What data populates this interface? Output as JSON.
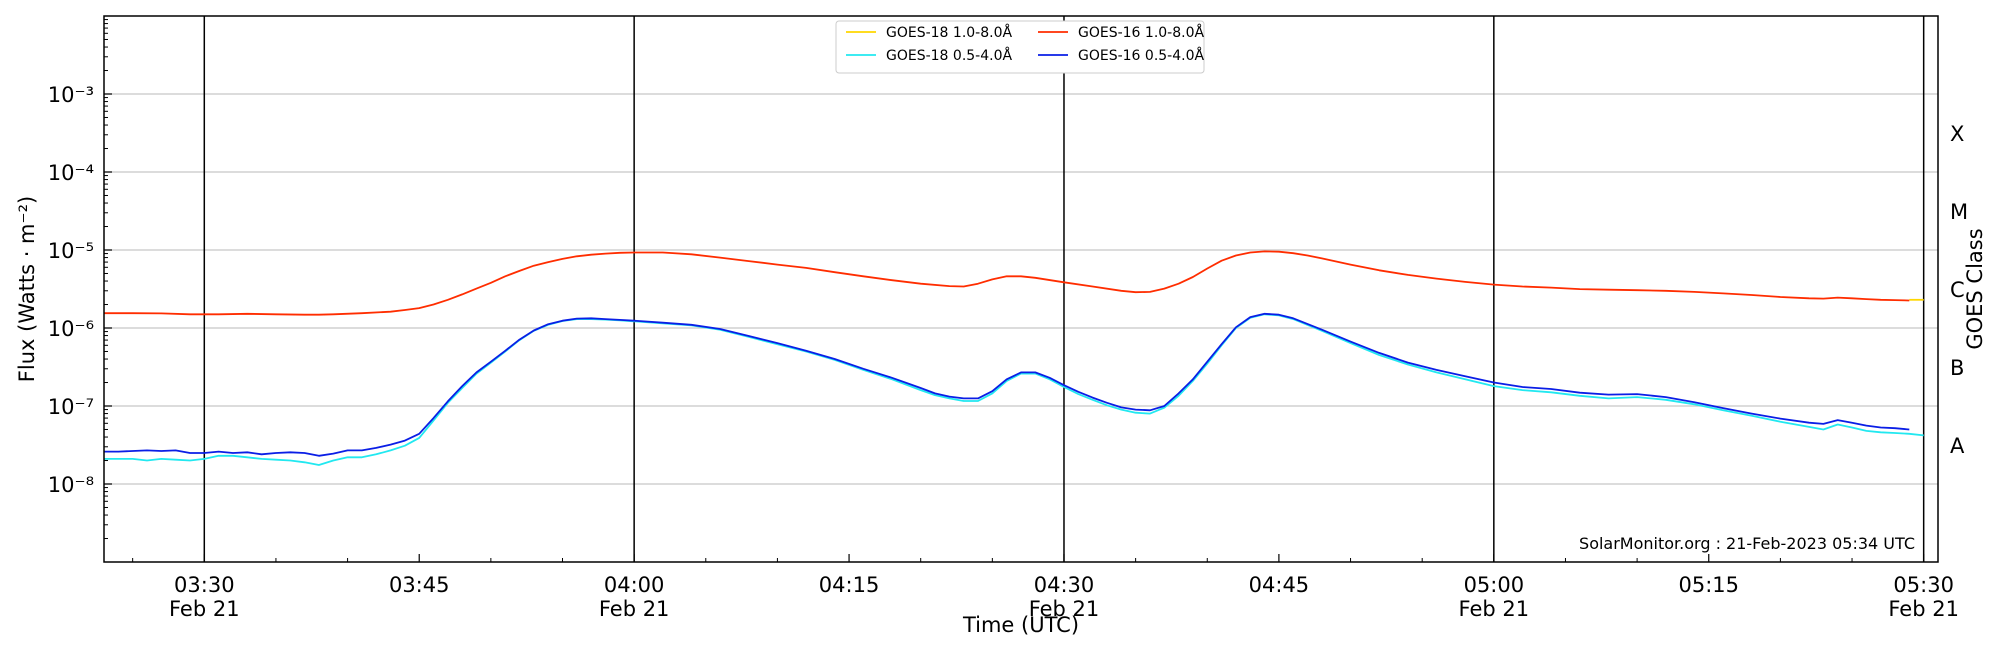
{
  "chart_data": {
    "type": "line",
    "title": "",
    "xlabel": "Time (UTC)",
    "ylabel": "Flux (Watts · m⁻²)",
    "right_label": "GOES Class",
    "y_scale": "log",
    "ylim": [
      1e-09,
      0.01
    ],
    "x_unit": "minutes",
    "xlim": [
      "03:23",
      "05:31"
    ],
    "y_ticks": [
      {
        "value": 1e-08,
        "label": "10⁻⁸"
      },
      {
        "value": 1e-07,
        "label": "10⁻⁷"
      },
      {
        "value": 1e-06,
        "label": "10⁻⁶"
      },
      {
        "value": 1e-05,
        "label": "10⁻⁵"
      },
      {
        "value": 0.0001,
        "label": "10⁻⁴"
      },
      {
        "value": 0.001,
        "label": "10⁻³"
      }
    ],
    "x_ticks": [
      {
        "time": "03:30",
        "label": "03:30",
        "sublabel": "Feb 21",
        "major": true
      },
      {
        "time": "03:45",
        "label": "03:45",
        "sublabel": "",
        "major": false
      },
      {
        "time": "04:00",
        "label": "04:00",
        "sublabel": "Feb 21",
        "major": true
      },
      {
        "time": "04:15",
        "label": "04:15",
        "sublabel": "",
        "major": false
      },
      {
        "time": "04:30",
        "label": "04:30",
        "sublabel": "Feb 21",
        "major": true
      },
      {
        "time": "04:45",
        "label": "04:45",
        "sublabel": "",
        "major": false
      },
      {
        "time": "05:00",
        "label": "05:00",
        "sublabel": "Feb 21",
        "major": true
      },
      {
        "time": "05:15",
        "label": "05:15",
        "sublabel": "",
        "major": false
      },
      {
        "time": "05:30",
        "label": "05:30",
        "sublabel": "Feb 21",
        "major": true
      }
    ],
    "goes_classes": [
      {
        "label": "A",
        "value": 3.16e-08
      },
      {
        "label": "B",
        "value": 3.16e-07
      },
      {
        "label": "C",
        "value": 3.16e-06
      },
      {
        "label": "M",
        "value": 3.16e-05
      },
      {
        "label": "X",
        "value": 0.000316
      }
    ],
    "grid": true,
    "legend_position": "top-center",
    "watermark": "SolarMonitor.org : 21-Feb-2023 05:34 UTC",
    "series": [
      {
        "name": "GOES-18 1.0-8.0Å",
        "color": "#ffd700",
        "x": [
          "05:29",
          "05:30"
        ],
        "y": [
          2.3e-06,
          2.3e-06
        ]
      },
      {
        "name": "GOES-18 0.5-4.0Å",
        "color": "#22e8f0",
        "x": [
          "03:23",
          "03:24",
          "03:25",
          "03:26",
          "03:27",
          "03:28",
          "03:29",
          "03:30",
          "03:31",
          "03:32",
          "03:33",
          "03:34",
          "03:35",
          "03:36",
          "03:37",
          "03:38",
          "03:39",
          "03:40",
          "03:41",
          "03:42",
          "03:43",
          "03:44",
          "03:45",
          "03:46",
          "03:47",
          "03:48",
          "03:49",
          "03:50",
          "03:51",
          "03:52",
          "03:53",
          "03:54",
          "03:55",
          "03:56",
          "03:57",
          "03:58",
          "03:59",
          "04:00",
          "04:02",
          "04:04",
          "04:06",
          "04:08",
          "04:10",
          "04:12",
          "04:14",
          "04:16",
          "04:18",
          "04:20",
          "04:21",
          "04:22",
          "04:23",
          "04:24",
          "04:25",
          "04:26",
          "04:27",
          "04:28",
          "04:29",
          "04:30",
          "04:31",
          "04:32",
          "04:33",
          "04:34",
          "04:35",
          "04:36",
          "04:37",
          "04:38",
          "04:39",
          "04:40",
          "04:41",
          "04:42",
          "04:43",
          "04:44",
          "04:45",
          "04:46",
          "04:48",
          "04:50",
          "04:52",
          "04:54",
          "04:56",
          "04:58",
          "05:00",
          "05:02",
          "05:04",
          "05:06",
          "05:08",
          "05:10",
          "05:12",
          "05:14",
          "05:16",
          "05:18",
          "05:20",
          "05:22",
          "05:23",
          "05:24",
          "05:25",
          "05:26",
          "05:27",
          "05:28",
          "05:29",
          "05:30"
        ],
        "y": [
          2.1e-08,
          2.1e-08,
          2.1e-08,
          2e-08,
          2.1e-08,
          2.05e-08,
          2e-08,
          2.1e-08,
          2.3e-08,
          2.3e-08,
          2.2e-08,
          2.1e-08,
          2.05e-08,
          2e-08,
          1.9e-08,
          1.75e-08,
          2e-08,
          2.2e-08,
          2.2e-08,
          2.4e-08,
          2.7e-08,
          3.1e-08,
          3.9e-08,
          6.5e-08,
          1.1e-07,
          1.7e-07,
          2.6e-07,
          3.6e-07,
          5e-07,
          7e-07,
          9.2e-07,
          1.1e-06,
          1.23e-06,
          1.3e-06,
          1.3e-06,
          1.28e-06,
          1.25e-06,
          1.22e-06,
          1.15e-06,
          1.08e-06,
          9.5e-07,
          7.7e-07,
          6.2e-07,
          5e-07,
          3.9e-07,
          2.9e-07,
          2.2e-07,
          1.6e-07,
          1.38e-07,
          1.25e-07,
          1.16e-07,
          1.16e-07,
          1.45e-07,
          2.1e-07,
          2.6e-07,
          2.6e-07,
          2.2e-07,
          1.75e-07,
          1.42e-07,
          1.2e-07,
          1.02e-07,
          9e-08,
          8.2e-08,
          8e-08,
          9.5e-08,
          1.35e-07,
          2.1e-07,
          3.5e-07,
          6e-07,
          1e-06,
          1.35e-06,
          1.5e-06,
          1.45e-06,
          1.3e-06,
          9.2e-07,
          6.4e-07,
          4.5e-07,
          3.4e-07,
          2.7e-07,
          2.2e-07,
          1.8e-07,
          1.6e-07,
          1.5e-07,
          1.35e-07,
          1.25e-07,
          1.3e-07,
          1.2e-07,
          1.05e-07,
          8.8e-08,
          7.5e-08,
          6.3e-08,
          5.4e-08,
          5e-08,
          5.8e-08,
          5.3e-08,
          4.8e-08,
          4.6e-08,
          4.5e-08,
          4.4e-08,
          4.2e-08
        ]
      },
      {
        "name": "GOES-16 1.0-8.0Å",
        "color": "#ff2d00",
        "x": [
          "03:23",
          "03:25",
          "03:27",
          "03:29",
          "03:31",
          "03:33",
          "03:35",
          "03:37",
          "03:38",
          "03:39",
          "03:41",
          "03:43",
          "03:44",
          "03:45",
          "03:46",
          "03:47",
          "03:48",
          "03:49",
          "03:50",
          "03:51",
          "03:52",
          "03:53",
          "03:54",
          "03:55",
          "03:56",
          "03:57",
          "03:58",
          "03:59",
          "04:00",
          "04:02",
          "04:04",
          "04:06",
          "04:08",
          "04:10",
          "04:12",
          "04:14",
          "04:16",
          "04:18",
          "04:20",
          "04:22",
          "04:23",
          "04:24",
          "04:25",
          "04:26",
          "04:27",
          "04:28",
          "04:30",
          "04:32",
          "04:34",
          "04:35",
          "04:36",
          "04:37",
          "04:38",
          "04:39",
          "04:40",
          "04:41",
          "04:42",
          "04:43",
          "04:44",
          "04:45",
          "04:46",
          "04:47",
          "04:48",
          "04:50",
          "04:52",
          "04:54",
          "04:56",
          "04:58",
          "05:00",
          "05:02",
          "05:04",
          "05:06",
          "05:08",
          "05:10",
          "05:12",
          "05:14",
          "05:16",
          "05:18",
          "05:20",
          "05:22",
          "05:23",
          "05:24",
          "05:25",
          "05:26",
          "05:27",
          "05:28",
          "05:29"
        ],
        "y": [
          1.55e-06,
          1.55e-06,
          1.54e-06,
          1.5e-06,
          1.5e-06,
          1.52e-06,
          1.5e-06,
          1.48e-06,
          1.48e-06,
          1.5e-06,
          1.55e-06,
          1.62e-06,
          1.7e-06,
          1.8e-06,
          2e-06,
          2.3e-06,
          2.7e-06,
          3.2e-06,
          3.8e-06,
          4.6e-06,
          5.4e-06,
          6.3e-06,
          7e-06,
          7.7e-06,
          8.3e-06,
          8.7e-06,
          9e-06,
          9.2e-06,
          9.3e-06,
          9.3e-06,
          8.8e-06,
          8e-06,
          7.2e-06,
          6.5e-06,
          5.9e-06,
          5.2e-06,
          4.6e-06,
          4.1e-06,
          3.7e-06,
          3.45e-06,
          3.4e-06,
          3.7e-06,
          4.2e-06,
          4.6e-06,
          4.6e-06,
          4.4e-06,
          3.85e-06,
          3.4e-06,
          3e-06,
          2.88e-06,
          2.9e-06,
          3.2e-06,
          3.7e-06,
          4.5e-06,
          5.8e-06,
          7.3e-06,
          8.5e-06,
          9.3e-06,
          9.6e-06,
          9.5e-06,
          9.1e-06,
          8.5e-06,
          7.8e-06,
          6.5e-06,
          5.5e-06,
          4.8e-06,
          4.3e-06,
          3.9e-06,
          3.6e-06,
          3.4e-06,
          3.3e-06,
          3.15e-06,
          3.1e-06,
          3.05e-06,
          3e-06,
          2.9e-06,
          2.78e-06,
          2.65e-06,
          2.5e-06,
          2.4e-06,
          2.38e-06,
          2.45e-06,
          2.4e-06,
          2.35e-06,
          2.3e-06,
          2.28e-06,
          2.25e-06
        ]
      },
      {
        "name": "GOES-16 0.5-4.0Å",
        "color": "#0a1ee6",
        "x": [
          "03:23",
          "03:24",
          "03:25",
          "03:26",
          "03:27",
          "03:28",
          "03:29",
          "03:30",
          "03:31",
          "03:32",
          "03:33",
          "03:34",
          "03:35",
          "03:36",
          "03:37",
          "03:38",
          "03:39",
          "03:40",
          "03:41",
          "03:42",
          "03:43",
          "03:44",
          "03:45",
          "03:46",
          "03:47",
          "03:48",
          "03:49",
          "03:50",
          "03:51",
          "03:52",
          "03:53",
          "03:54",
          "03:55",
          "03:56",
          "03:57",
          "03:58",
          "03:59",
          "04:00",
          "04:02",
          "04:04",
          "04:06",
          "04:08",
          "04:10",
          "04:12",
          "04:14",
          "04:16",
          "04:18",
          "04:20",
          "04:21",
          "04:22",
          "04:23",
          "04:24",
          "04:25",
          "04:26",
          "04:27",
          "04:28",
          "04:29",
          "04:30",
          "04:31",
          "04:32",
          "04:33",
          "04:34",
          "04:35",
          "04:36",
          "04:37",
          "04:38",
          "04:39",
          "04:40",
          "04:41",
          "04:42",
          "04:43",
          "04:44",
          "04:45",
          "04:46",
          "04:48",
          "04:50",
          "04:52",
          "04:54",
          "04:56",
          "04:58",
          "05:00",
          "05:02",
          "05:04",
          "05:06",
          "05:08",
          "05:10",
          "05:12",
          "05:14",
          "05:16",
          "05:18",
          "05:20",
          "05:22",
          "05:23",
          "05:24",
          "05:25",
          "05:26",
          "05:27",
          "05:28",
          "05:29"
        ],
        "y": [
          2.6e-08,
          2.6e-08,
          2.65e-08,
          2.7e-08,
          2.65e-08,
          2.7e-08,
          2.5e-08,
          2.5e-08,
          2.6e-08,
          2.5e-08,
          2.55e-08,
          2.4e-08,
          2.5e-08,
          2.55e-08,
          2.5e-08,
          2.3e-08,
          2.45e-08,
          2.7e-08,
          2.7e-08,
          2.9e-08,
          3.2e-08,
          3.6e-08,
          4.4e-08,
          7e-08,
          1.15e-07,
          1.8e-07,
          2.7e-07,
          3.7e-07,
          5.1e-07,
          7.1e-07,
          9.3e-07,
          1.12e-06,
          1.24e-06,
          1.32e-06,
          1.33e-06,
          1.3e-06,
          1.27e-06,
          1.24e-06,
          1.17e-06,
          1.1e-06,
          9.7e-07,
          7.9e-07,
          6.4e-07,
          5.1e-07,
          4e-07,
          3e-07,
          2.3e-07,
          1.7e-07,
          1.45e-07,
          1.32e-07,
          1.25e-07,
          1.25e-07,
          1.55e-07,
          2.2e-07,
          2.7e-07,
          2.7e-07,
          2.3e-07,
          1.85e-07,
          1.52e-07,
          1.28e-07,
          1.1e-07,
          9.6e-08,
          9e-08,
          8.8e-08,
          1e-07,
          1.45e-07,
          2.2e-07,
          3.7e-07,
          6.2e-07,
          1.02e-06,
          1.38e-06,
          1.52e-06,
          1.48e-06,
          1.33e-06,
          9.5e-07,
          6.7e-07,
          4.8e-07,
          3.6e-07,
          2.9e-07,
          2.4e-07,
          2e-07,
          1.75e-07,
          1.65e-07,
          1.48e-07,
          1.4e-07,
          1.42e-07,
          1.3e-07,
          1.12e-07,
          9.4e-08,
          8e-08,
          6.9e-08,
          6.1e-08,
          5.9e-08,
          6.6e-08,
          6.1e-08,
          5.6e-08,
          5.3e-08,
          5.2e-08,
          5e-08
        ]
      }
    ]
  }
}
